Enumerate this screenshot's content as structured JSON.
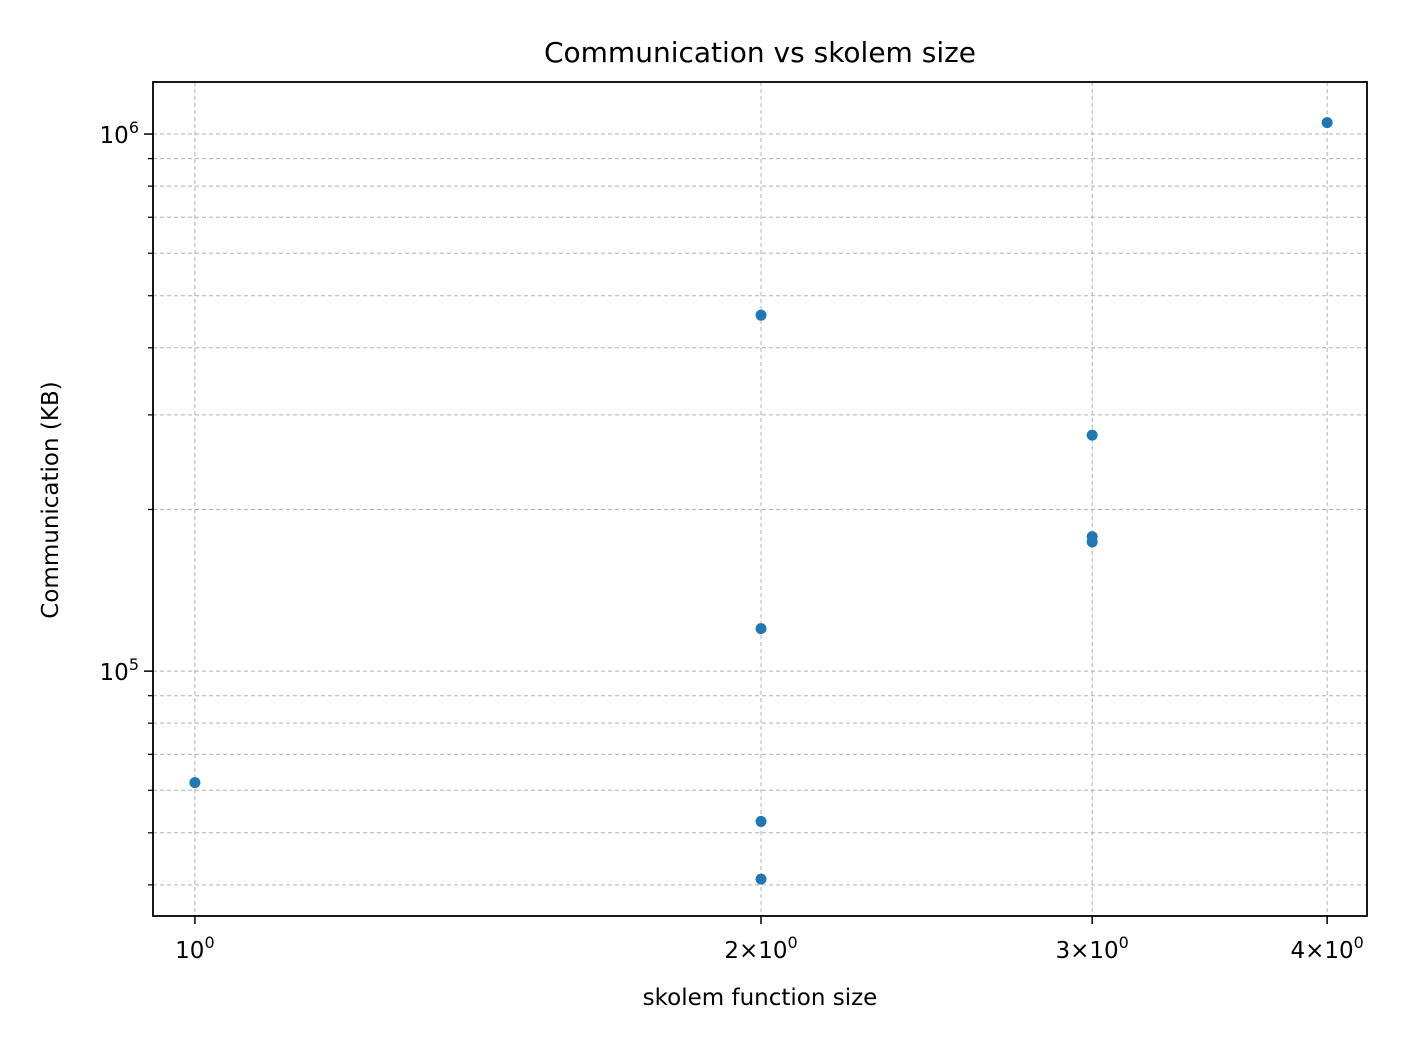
{
  "chart_data": {
    "type": "scatter",
    "title": "Communication vs skolem size",
    "xlabel": "skolem function size",
    "ylabel": "Communication (KB)",
    "xscale": "log",
    "yscale": "log",
    "xlim": [
      0.95,
      4.2
    ],
    "ylim": [
      35000,
      1250000
    ],
    "grid": true,
    "grid_style": "dashed",
    "color": "#1f77b4",
    "x_ticks": [
      {
        "value": 1,
        "base": "10",
        "exp": "0"
      },
      {
        "value": 2,
        "base": "2×10",
        "exp": "0"
      },
      {
        "value": 3,
        "base": "3×10",
        "exp": "0"
      },
      {
        "value": 4,
        "base": "4×10",
        "exp": "0"
      }
    ],
    "y_ticks": [
      {
        "value": 100000,
        "base": "10",
        "exp": "5"
      },
      {
        "value": 1000000,
        "base": "10",
        "exp": "6"
      }
    ],
    "y_minor_ticks": [
      40000,
      50000,
      60000,
      70000,
      80000,
      90000,
      200000,
      300000,
      400000,
      500000,
      600000,
      700000,
      800000,
      900000
    ],
    "points": [
      {
        "x": 1,
        "y": 62000
      },
      {
        "x": 2,
        "y": 460000
      },
      {
        "x": 2,
        "y": 120000
      },
      {
        "x": 2,
        "y": 52500
      },
      {
        "x": 2,
        "y": 41000
      },
      {
        "x": 3,
        "y": 275000
      },
      {
        "x": 3,
        "y": 178000
      },
      {
        "x": 3,
        "y": 174000
      },
      {
        "x": 4,
        "y": 1050000
      }
    ]
  }
}
